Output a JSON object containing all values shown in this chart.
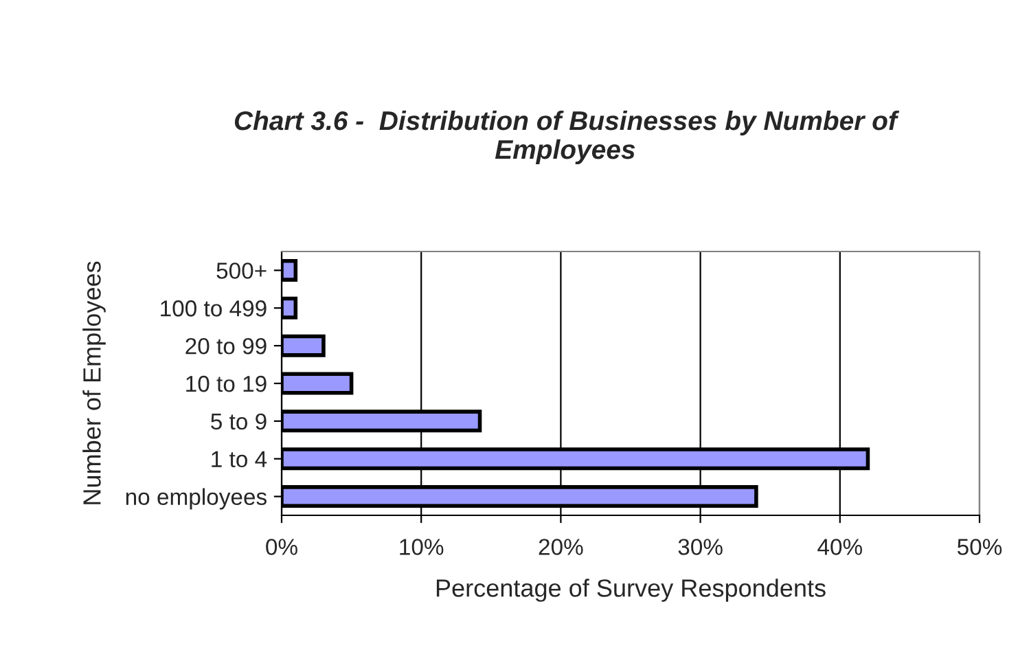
{
  "chart_data": {
    "type": "bar",
    "orientation": "horizontal",
    "title": "Chart 3.6 -  Distribution of Businesses by Number of Employees",
    "xlabel": "Percentage of Survey Respondents",
    "ylabel": "Number of Employees",
    "categories": [
      "500+",
      "100 to 499",
      "20 to 99",
      "10 to 19",
      "5 to 9",
      "1 to 4",
      "no employees"
    ],
    "values": [
      1,
      1,
      3,
      5,
      14.2,
      42,
      34
    ],
    "color": "#9999ff",
    "xlim": [
      0,
      50
    ],
    "xticks": [
      {
        "value": 0,
        "label": "0%"
      },
      {
        "value": 10,
        "label": "10%"
      },
      {
        "value": 20,
        "label": "20%"
      },
      {
        "value": 30,
        "label": "30%"
      },
      {
        "value": 40,
        "label": "40%"
      },
      {
        "value": 50,
        "label": "50%"
      }
    ],
    "grid": "x"
  }
}
